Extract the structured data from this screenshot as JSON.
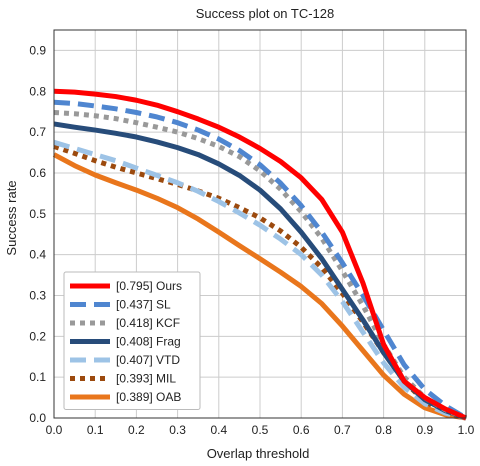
{
  "chart_data": {
    "type": "line",
    "title": "Success plot on TC-128",
    "xlabel": "Overlap threshold",
    "ylabel": "Success rate",
    "xlim": [
      0,
      1
    ],
    "ylim": [
      0,
      0.95
    ],
    "xticks": [
      "0.0",
      "0.1",
      "0.2",
      "0.3",
      "0.4",
      "0.5",
      "0.6",
      "0.7",
      "0.8",
      "0.9",
      "1.0"
    ],
    "yticks": [
      "0.0",
      "0.1",
      "0.2",
      "0.3",
      "0.4",
      "0.5",
      "0.6",
      "0.7",
      "0.8",
      "0.9"
    ],
    "grid": true,
    "legend_position": "bottom-left",
    "series": [
      {
        "name": "[0.795] Ours",
        "color": "#ff0000",
        "dash": "solid",
        "x": [
          0,
          0.05,
          0.1,
          0.15,
          0.2,
          0.25,
          0.3,
          0.35,
          0.4,
          0.45,
          0.5,
          0.55,
          0.6,
          0.65,
          0.7,
          0.75,
          0.8,
          0.85,
          0.9,
          0.95,
          1.0
        ],
        "y": [
          0.8,
          0.798,
          0.793,
          0.787,
          0.778,
          0.766,
          0.75,
          0.732,
          0.712,
          0.688,
          0.66,
          0.628,
          0.588,
          0.535,
          0.455,
          0.33,
          0.18,
          0.09,
          0.05,
          0.022,
          0.0
        ]
      },
      {
        "name": "[0.437] SL",
        "color": "#4f86d0",
        "dash": "dash",
        "x": [
          0,
          0.05,
          0.1,
          0.15,
          0.2,
          0.25,
          0.3,
          0.35,
          0.4,
          0.45,
          0.5,
          0.55,
          0.6,
          0.65,
          0.7,
          0.75,
          0.8,
          0.85,
          0.9,
          0.95,
          1.0
        ],
        "y": [
          0.773,
          0.77,
          0.764,
          0.757,
          0.748,
          0.737,
          0.723,
          0.705,
          0.683,
          0.655,
          0.62,
          0.575,
          0.52,
          0.455,
          0.38,
          0.3,
          0.215,
          0.13,
          0.07,
          0.03,
          0.0
        ]
      },
      {
        "name": "[0.418] KCF",
        "color": "#999999",
        "dash": "dot",
        "x": [
          0,
          0.05,
          0.1,
          0.15,
          0.2,
          0.25,
          0.3,
          0.35,
          0.4,
          0.45,
          0.5,
          0.55,
          0.6,
          0.65,
          0.7,
          0.75,
          0.8,
          0.85,
          0.9,
          0.95,
          1.0
        ],
        "y": [
          0.748,
          0.745,
          0.74,
          0.733,
          0.723,
          0.712,
          0.7,
          0.684,
          0.665,
          0.64,
          0.605,
          0.56,
          0.505,
          0.44,
          0.36,
          0.275,
          0.18,
          0.1,
          0.05,
          0.02,
          0.0
        ]
      },
      {
        "name": "[0.408] Frag",
        "color": "#274c7a",
        "dash": "solid",
        "x": [
          0,
          0.05,
          0.1,
          0.15,
          0.2,
          0.25,
          0.3,
          0.35,
          0.4,
          0.45,
          0.5,
          0.55,
          0.6,
          0.65,
          0.7,
          0.75,
          0.8,
          0.85,
          0.9,
          0.95,
          1.0
        ],
        "y": [
          0.72,
          0.712,
          0.705,
          0.697,
          0.688,
          0.676,
          0.662,
          0.645,
          0.622,
          0.594,
          0.558,
          0.512,
          0.455,
          0.39,
          0.315,
          0.24,
          0.16,
          0.09,
          0.045,
          0.018,
          0.0
        ]
      },
      {
        "name": "[0.407] VTD",
        "color": "#9dc3e6",
        "dash": "dash",
        "x": [
          0,
          0.05,
          0.1,
          0.15,
          0.2,
          0.25,
          0.3,
          0.35,
          0.4,
          0.45,
          0.5,
          0.55,
          0.6,
          0.65,
          0.7,
          0.75,
          0.8,
          0.85,
          0.9,
          0.95,
          1.0
        ],
        "y": [
          0.675,
          0.66,
          0.645,
          0.63,
          0.612,
          0.594,
          0.576,
          0.555,
          0.53,
          0.502,
          0.472,
          0.438,
          0.4,
          0.35,
          0.285,
          0.21,
          0.135,
          0.075,
          0.035,
          0.012,
          0.0
        ]
      },
      {
        "name": "[0.393] MIL",
        "color": "#9c4a0e",
        "dash": "dot",
        "x": [
          0,
          0.05,
          0.1,
          0.15,
          0.2,
          0.25,
          0.3,
          0.35,
          0.4,
          0.45,
          0.5,
          0.55,
          0.6,
          0.65,
          0.7,
          0.75,
          0.8,
          0.85,
          0.9,
          0.95,
          1.0
        ],
        "y": [
          0.665,
          0.648,
          0.63,
          0.614,
          0.6,
          0.586,
          0.572,
          0.556,
          0.538,
          0.515,
          0.49,
          0.458,
          0.418,
          0.368,
          0.305,
          0.235,
          0.16,
          0.09,
          0.04,
          0.014,
          0.0
        ]
      },
      {
        "name": "[0.389] OAB",
        "color": "#e9761c",
        "dash": "solid",
        "x": [
          0,
          0.05,
          0.1,
          0.15,
          0.2,
          0.25,
          0.3,
          0.35,
          0.4,
          0.45,
          0.5,
          0.55,
          0.6,
          0.65,
          0.7,
          0.75,
          0.8,
          0.85,
          0.9,
          0.95,
          1.0
        ],
        "y": [
          0.645,
          0.618,
          0.595,
          0.576,
          0.558,
          0.538,
          0.515,
          0.487,
          0.455,
          0.422,
          0.39,
          0.357,
          0.322,
          0.28,
          0.225,
          0.165,
          0.105,
          0.058,
          0.025,
          0.008,
          0.0
        ]
      }
    ]
  }
}
